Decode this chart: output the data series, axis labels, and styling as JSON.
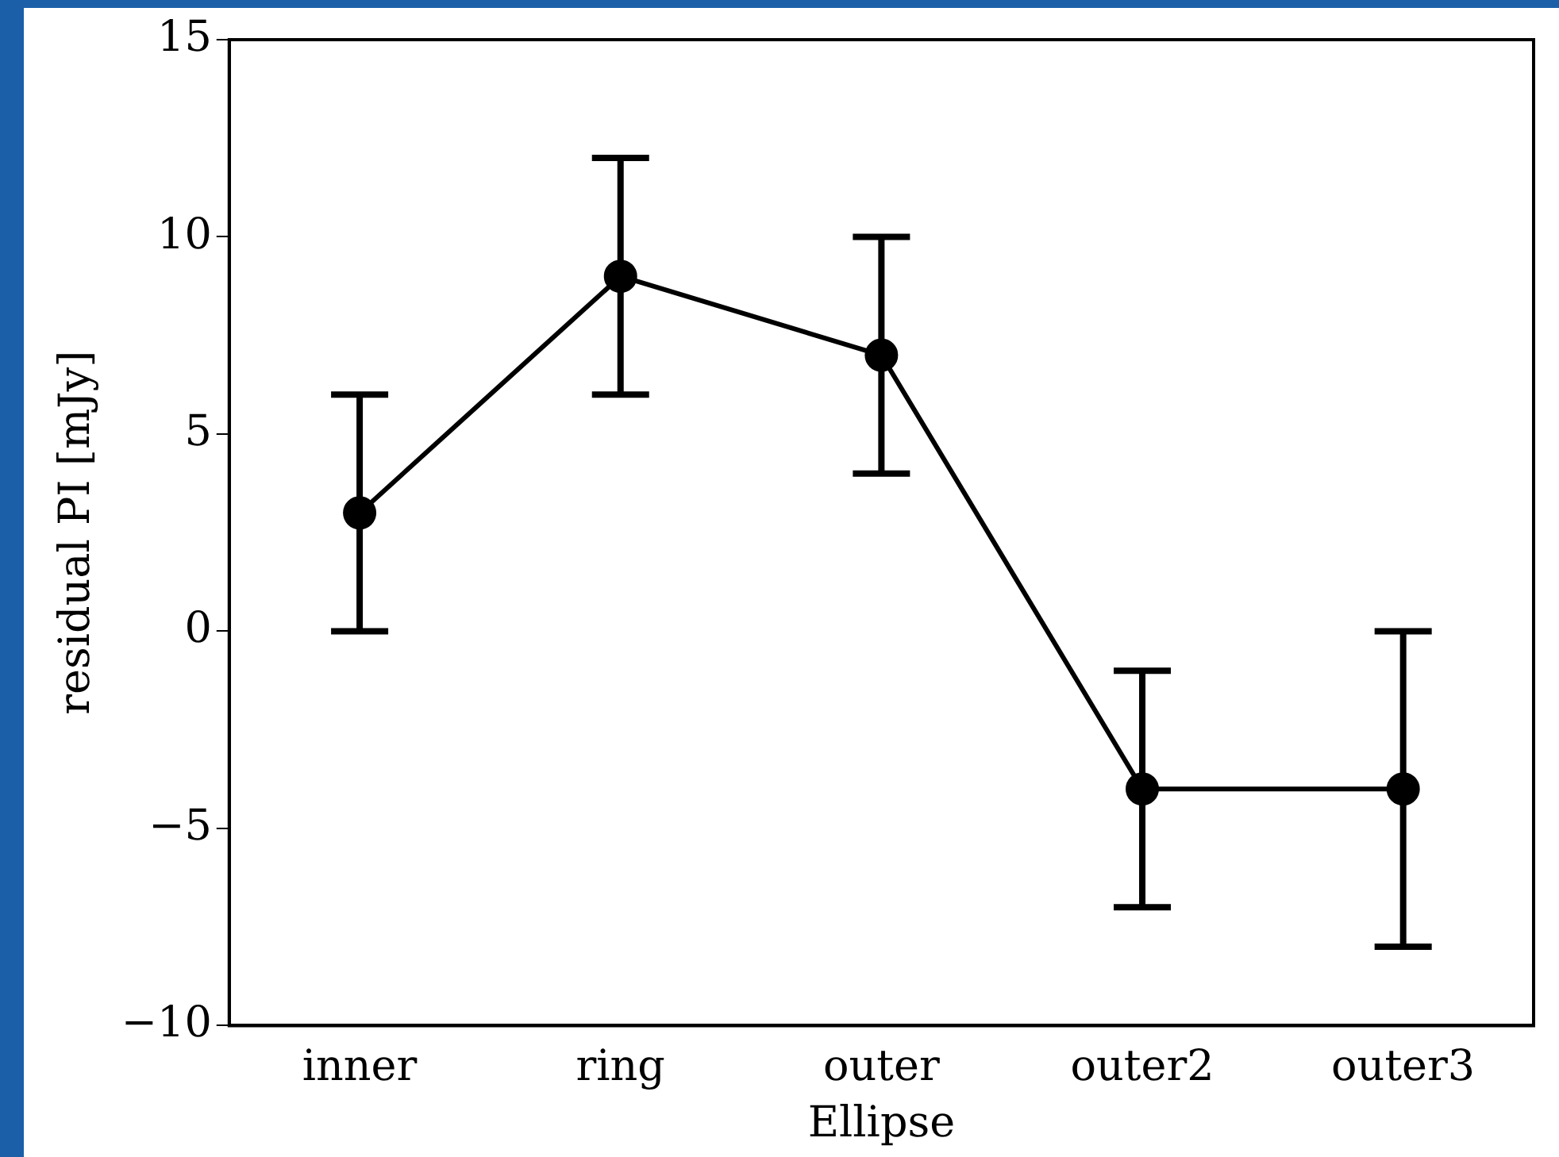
{
  "chart_data": {
    "type": "line",
    "xlabel": "Ellipse",
    "ylabel": "residual PI [mJy]",
    "categories": [
      "inner",
      "ring",
      "outer",
      "outer2",
      "outer3"
    ],
    "series": [
      {
        "color": "#000000",
        "values": [
          3,
          9,
          7,
          -4,
          -4
        ],
        "errors": [
          3,
          3,
          3,
          3,
          4
        ]
      }
    ],
    "ylim": [
      -10,
      15
    ],
    "yticks": [
      -10,
      -5,
      0,
      5,
      10,
      15
    ],
    "grid": false,
    "legend": false,
    "marker": "circle",
    "line_style": "solid"
  }
}
